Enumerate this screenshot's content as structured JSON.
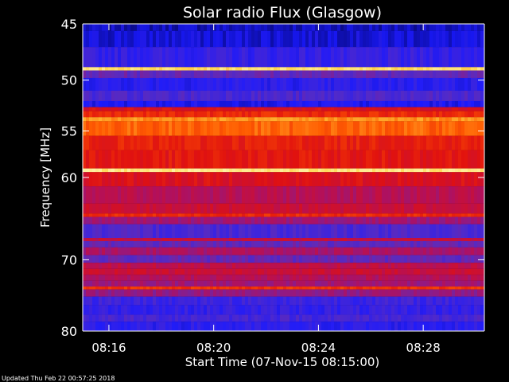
{
  "chart_data": {
    "type": "heatmap",
    "title": "Solar radio Flux (Glasgow)",
    "xlabel": "Start Time (07-Nov-15 08:15:00)",
    "ylabel": "Frequency [MHz]",
    "x_unit": "time of day (HH:MM)",
    "xlim": [
      "08:15:00",
      "08:30:20"
    ],
    "ylim": [
      45,
      80
    ],
    "y_axis_inverted": true,
    "x_ticks": [
      {
        "value": "08:16:00",
        "label": "08:16"
      },
      {
        "value": "08:20:00",
        "label": "08:20"
      },
      {
        "value": "08:24:00",
        "label": "08:24"
      },
      {
        "value": "08:28:00",
        "label": "08:28"
      }
    ],
    "y_ticks": [
      {
        "value": 45,
        "label": "45"
      },
      {
        "value": 50,
        "label": "50"
      },
      {
        "value": 55,
        "label": "55"
      },
      {
        "value": 60,
        "label": "60"
      },
      {
        "value": 70,
        "label": "70"
      },
      {
        "value": 80,
        "label": "80"
      }
    ],
    "colormap": [
      "#000033",
      "#1a1aff",
      "#5a2cc0",
      "#b01060",
      "#e01010",
      "#ff5a00",
      "#ffd040",
      "#ffffd0"
    ],
    "bands": [
      {
        "fmin": 45.0,
        "fmax": 45.6,
        "level": 0.1
      },
      {
        "fmin": 45.6,
        "fmax": 47.0,
        "level": 0.12
      },
      {
        "fmin": 47.0,
        "fmax": 48.8,
        "level": 0.2
      },
      {
        "fmin": 48.8,
        "fmax": 49.1,
        "level": 0.9
      },
      {
        "fmin": 49.1,
        "fmax": 49.8,
        "level": 0.3
      },
      {
        "fmin": 49.8,
        "fmax": 51.0,
        "level": 0.18
      },
      {
        "fmin": 51.0,
        "fmax": 52.0,
        "level": 0.25
      },
      {
        "fmin": 52.0,
        "fmax": 52.6,
        "level": 0.15
      },
      {
        "fmin": 52.6,
        "fmax": 53.0,
        "level": 0.55
      },
      {
        "fmin": 53.0,
        "fmax": 53.6,
        "level": 0.62
      },
      {
        "fmin": 53.6,
        "fmax": 54.0,
        "level": 0.78
      },
      {
        "fmin": 54.0,
        "fmax": 55.5,
        "level": 0.72
      },
      {
        "fmin": 55.5,
        "fmax": 57.0,
        "level": 0.6
      },
      {
        "fmin": 57.0,
        "fmax": 59.0,
        "level": 0.58
      },
      {
        "fmin": 59.0,
        "fmax": 59.4,
        "level": 0.92
      },
      {
        "fmin": 59.4,
        "fmax": 61.0,
        "level": 0.55
      },
      {
        "fmin": 61.0,
        "fmax": 63.0,
        "level": 0.45
      },
      {
        "fmin": 63.0,
        "fmax": 64.2,
        "level": 0.5
      },
      {
        "fmin": 64.2,
        "fmax": 64.6,
        "level": 0.62
      },
      {
        "fmin": 64.6,
        "fmax": 65.5,
        "level": 0.4
      },
      {
        "fmin": 65.5,
        "fmax": 67.2,
        "level": 0.25
      },
      {
        "fmin": 67.2,
        "fmax": 67.6,
        "level": 0.48
      },
      {
        "fmin": 67.6,
        "fmax": 68.4,
        "level": 0.3
      },
      {
        "fmin": 68.4,
        "fmax": 69.4,
        "level": 0.42
      },
      {
        "fmin": 69.4,
        "fmax": 70.4,
        "level": 0.3
      },
      {
        "fmin": 70.4,
        "fmax": 71.2,
        "level": 0.47
      },
      {
        "fmin": 71.2,
        "fmax": 72.0,
        "level": 0.5
      },
      {
        "fmin": 72.0,
        "fmax": 72.8,
        "level": 0.44
      },
      {
        "fmin": 72.8,
        "fmax": 73.6,
        "level": 0.4
      },
      {
        "fmin": 73.6,
        "fmax": 74.0,
        "level": 0.64
      },
      {
        "fmin": 74.0,
        "fmax": 75.0,
        "level": 0.38
      },
      {
        "fmin": 75.0,
        "fmax": 76.2,
        "level": 0.22
      },
      {
        "fmin": 76.2,
        "fmax": 77.6,
        "level": 0.2
      },
      {
        "fmin": 77.6,
        "fmax": 78.6,
        "level": 0.24
      },
      {
        "fmin": 78.6,
        "fmax": 80.0,
        "level": 0.18
      }
    ]
  },
  "footer": {
    "updated_text": "Updated Thu Feb 22 00:57:25 2018"
  }
}
